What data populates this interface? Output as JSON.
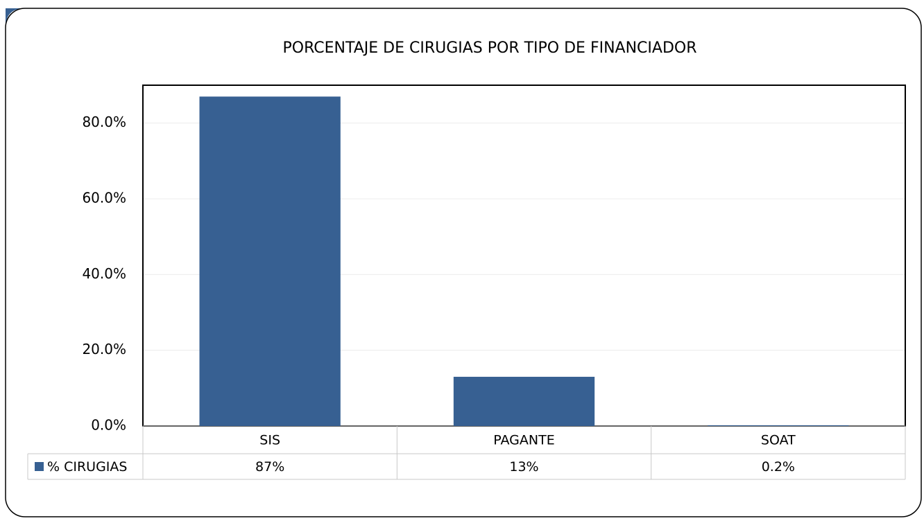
{
  "chart_data": {
    "type": "bar",
    "title": "PORCENTAJE DE CIRUGIAS POR TIPO DE FINANCIADOR",
    "categories": [
      "SIS",
      "PAGANTE",
      "SOAT"
    ],
    "series": [
      {
        "name": "% CIRUGIAS",
        "color": "#376092",
        "values": [
          87,
          13,
          0.2
        ],
        "value_labels": [
          "87%",
          "13%",
          "0.2%"
        ]
      }
    ],
    "ylim": [
      0,
      90
    ],
    "yticks": [
      {
        "value": 0,
        "label": "0.0%"
      },
      {
        "value": 20,
        "label": "20.0%"
      },
      {
        "value": 40,
        "label": "40.0%"
      },
      {
        "value": 60,
        "label": "60.0%"
      },
      {
        "value": 80,
        "label": "80.0%"
      }
    ],
    "grid": true
  }
}
